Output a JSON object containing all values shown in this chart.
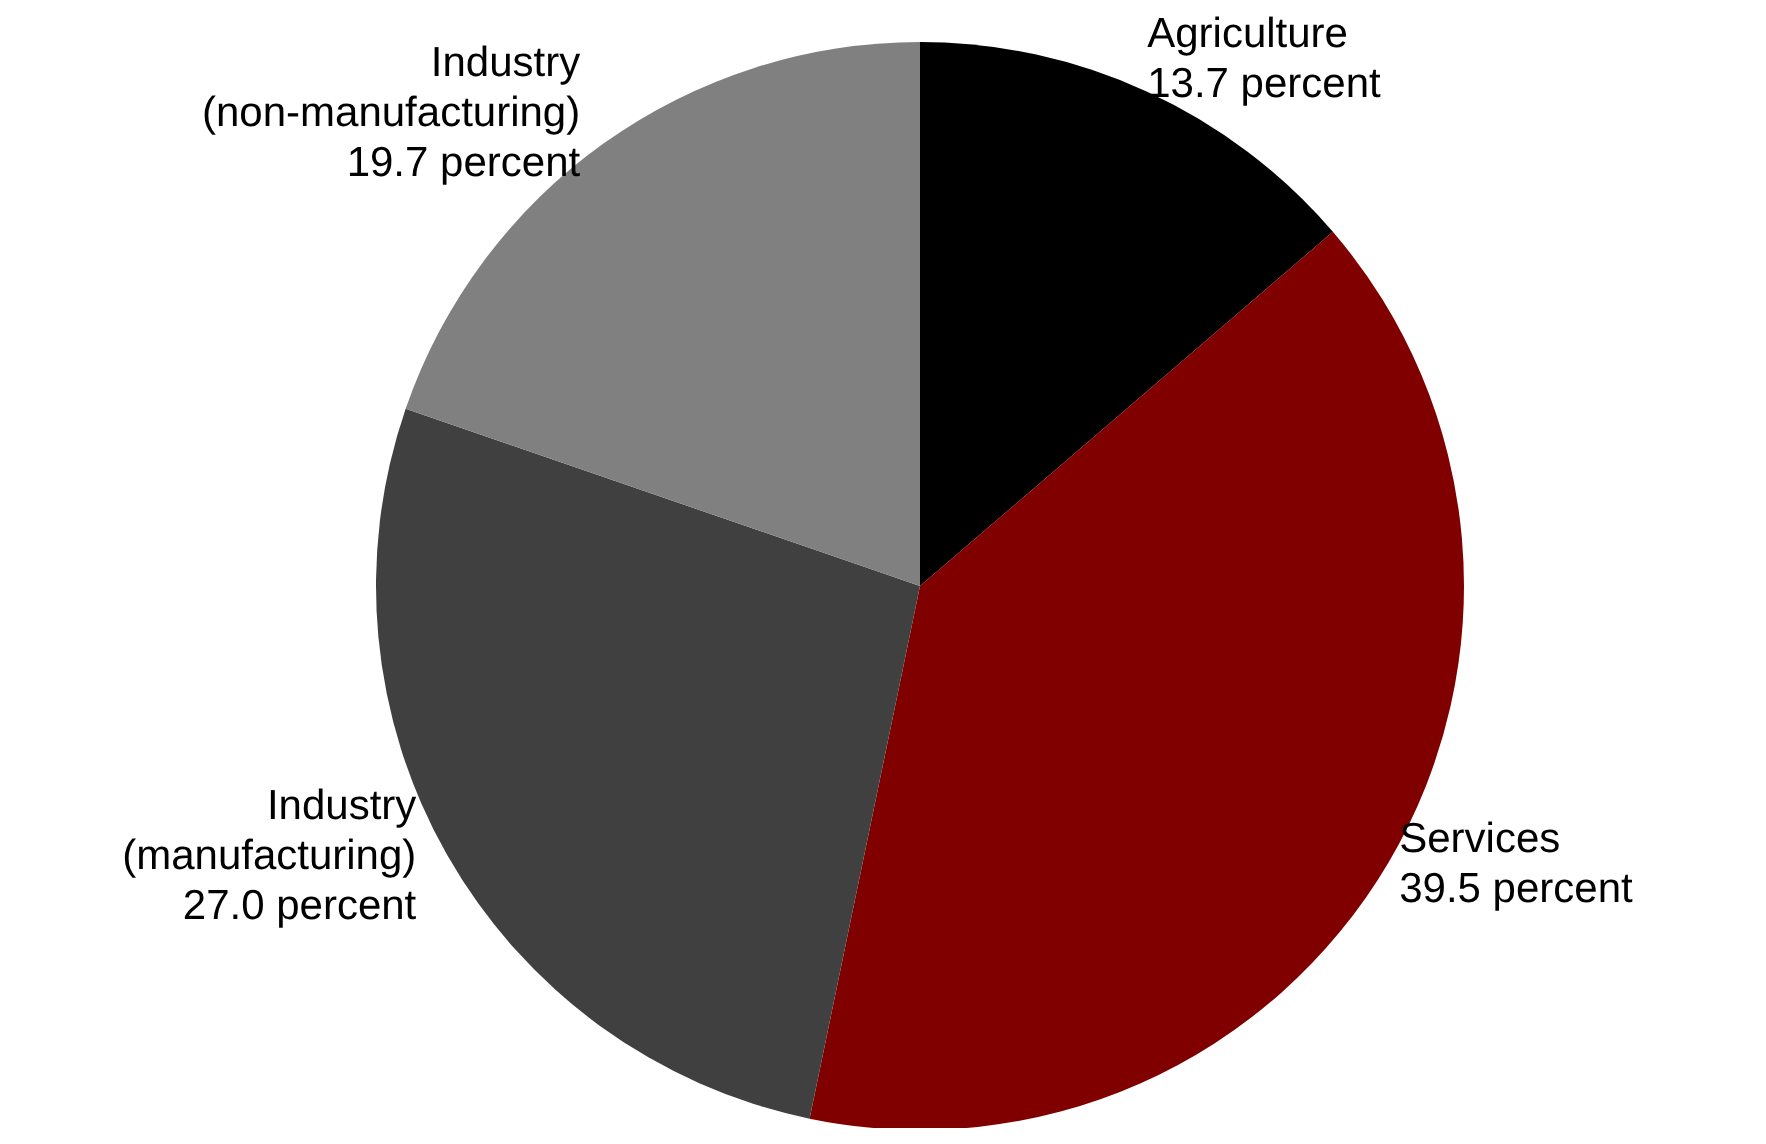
{
  "chart_data": {
    "type": "pie",
    "categories": [
      "Agriculture",
      "Services",
      "Industry (manufacturing)",
      "Industry (non-manufacturing)"
    ],
    "values": [
      13.7,
      39.5,
      27.0,
      19.7
    ],
    "value_labels": [
      "13.7 percent",
      "39.5 percent",
      "27.0 percent",
      "19.7 percent"
    ],
    "colors": [
      "#000000",
      "#800000",
      "#404040",
      "#808080"
    ],
    "legend": false
  }
}
